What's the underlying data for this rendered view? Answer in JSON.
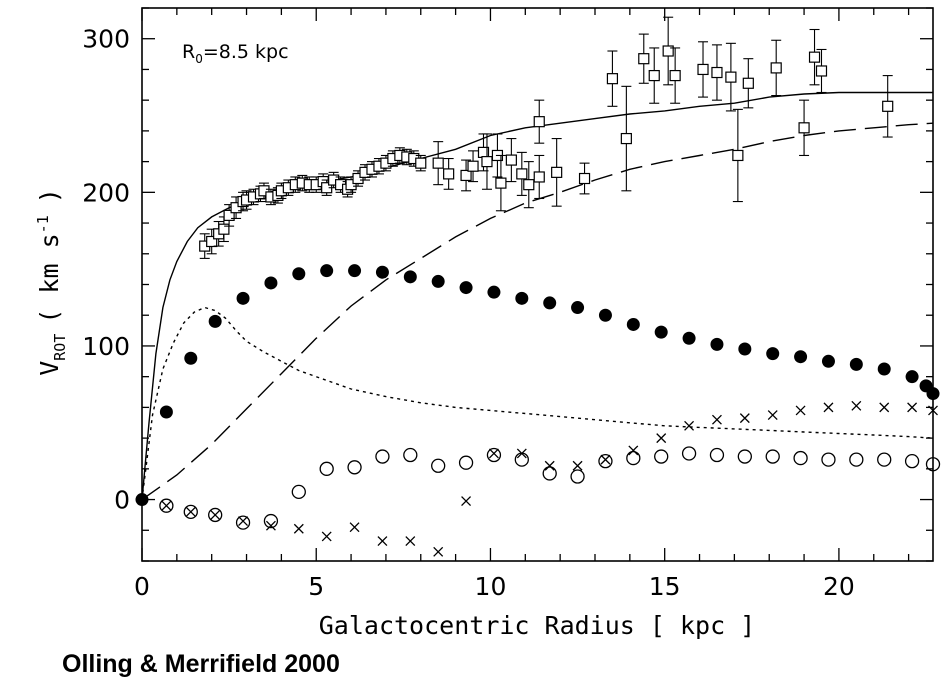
{
  "credit": "Olling & Merrifield  2000",
  "chart_data": {
    "type": "scatter",
    "xlabel": "Galactocentric Radius [ kpc ]",
    "ylabel": "V_ROT ( km s^-1 )",
    "ylabel_parts": {
      "v": "V",
      "sub": "ROT",
      "rest_a": "( km s",
      "sup": "-1",
      "rest_b": ")"
    },
    "annotation": {
      "base": "R",
      "sub": "0",
      "rest": "=8.5 kpc"
    },
    "xlim": [
      0,
      22.7
    ],
    "ylim": [
      -40,
      320
    ],
    "x_ticks": [
      0,
      5,
      10,
      15,
      20
    ],
    "y_ticks": [
      0,
      100,
      200,
      300
    ],
    "series": [
      {
        "marker": "open-square-errorbar",
        "points": [
          [
            1.8,
            165,
            8
          ],
          [
            2.0,
            168,
            8
          ],
          [
            2.2,
            173,
            8
          ],
          [
            2.35,
            176,
            8
          ],
          [
            2.5,
            185,
            7
          ],
          [
            2.7,
            190,
            7
          ],
          [
            2.9,
            194,
            6
          ],
          [
            3.0,
            195,
            6
          ],
          [
            3.2,
            197,
            5
          ],
          [
            3.4,
            199,
            5
          ],
          [
            3.5,
            201,
            5
          ],
          [
            3.7,
            197,
            5
          ],
          [
            3.9,
            198,
            5
          ],
          [
            4.0,
            201,
            5
          ],
          [
            4.2,
            203,
            5
          ],
          [
            4.4,
            205,
            5
          ],
          [
            4.6,
            206,
            5
          ],
          [
            4.8,
            205,
            5
          ],
          [
            5.0,
            205,
            5
          ],
          [
            5.2,
            207,
            5
          ],
          [
            5.3,
            203,
            5
          ],
          [
            5.5,
            208,
            5
          ],
          [
            5.7,
            205,
            5
          ],
          [
            5.9,
            202,
            5
          ],
          [
            6.0,
            205,
            5
          ],
          [
            6.2,
            209,
            5
          ],
          [
            6.4,
            213,
            5
          ],
          [
            6.6,
            215,
            5
          ],
          [
            6.8,
            217,
            5
          ],
          [
            7.0,
            219,
            5
          ],
          [
            7.2,
            222,
            5
          ],
          [
            7.4,
            224,
            5
          ],
          [
            7.6,
            223,
            5
          ],
          [
            7.8,
            222,
            5
          ],
          [
            8.0,
            219,
            5
          ],
          [
            8.5,
            219,
            14
          ],
          [
            8.8,
            212,
            10
          ],
          [
            9.3,
            211,
            10
          ],
          [
            9.5,
            217,
            10
          ],
          [
            9.8,
            226,
            12
          ],
          [
            9.9,
            220,
            18
          ],
          [
            10.2,
            224,
            14
          ],
          [
            10.3,
            206,
            18
          ],
          [
            10.6,
            221,
            14
          ],
          [
            10.9,
            212,
            14
          ],
          [
            11.1,
            205,
            15
          ],
          [
            11.4,
            246,
            14
          ],
          [
            11.4,
            210,
            14
          ],
          [
            11.9,
            213,
            22
          ],
          [
            12.7,
            209,
            10
          ],
          [
            13.5,
            274,
            18
          ],
          [
            13.9,
            235,
            34
          ],
          [
            14.4,
            287,
            16
          ],
          [
            14.7,
            276,
            18
          ],
          [
            15.1,
            292,
            22
          ],
          [
            15.3,
            276,
            18
          ],
          [
            16.1,
            280,
            18
          ],
          [
            16.5,
            278,
            18
          ],
          [
            16.9,
            275,
            22
          ],
          [
            17.1,
            224,
            30
          ],
          [
            17.4,
            271,
            16
          ],
          [
            18.2,
            281,
            18
          ],
          [
            19.0,
            242,
            18
          ],
          [
            19.3,
            288,
            18
          ],
          [
            19.5,
            279,
            14
          ],
          [
            21.4,
            256,
            20
          ]
        ]
      },
      {
        "marker": "filled-circle",
        "points": [
          [
            0,
            0
          ],
          [
            0.7,
            57
          ],
          [
            1.4,
            92
          ],
          [
            2.1,
            116
          ],
          [
            2.9,
            131
          ],
          [
            3.7,
            141
          ],
          [
            4.5,
            147
          ],
          [
            5.3,
            149
          ],
          [
            6.1,
            149
          ],
          [
            6.9,
            148
          ],
          [
            7.7,
            145
          ],
          [
            8.5,
            142
          ],
          [
            9.3,
            138
          ],
          [
            10.1,
            135
          ],
          [
            10.9,
            131
          ],
          [
            11.7,
            128
          ],
          [
            12.5,
            125
          ],
          [
            13.3,
            120
          ],
          [
            14.1,
            114
          ],
          [
            14.9,
            109
          ],
          [
            15.7,
            105
          ],
          [
            16.5,
            101
          ],
          [
            17.3,
            98
          ],
          [
            18.1,
            95
          ],
          [
            18.9,
            93
          ],
          [
            19.7,
            90
          ],
          [
            20.5,
            88
          ],
          [
            21.3,
            85
          ],
          [
            22.1,
            80
          ],
          [
            22.5,
            74
          ],
          [
            22.7,
            69
          ]
        ]
      },
      {
        "marker": "open-circle",
        "points": [
          [
            0.7,
            -4
          ],
          [
            1.4,
            -8
          ],
          [
            2.1,
            -10
          ],
          [
            2.9,
            -15
          ],
          [
            3.7,
            -14
          ],
          [
            4.5,
            5
          ],
          [
            5.3,
            20
          ],
          [
            6.1,
            21
          ],
          [
            6.9,
            28
          ],
          [
            7.7,
            29
          ],
          [
            8.5,
            22
          ],
          [
            9.3,
            24
          ],
          [
            10.1,
            29
          ],
          [
            10.9,
            26
          ],
          [
            11.7,
            17
          ],
          [
            12.5,
            15
          ],
          [
            13.3,
            25
          ],
          [
            14.1,
            27
          ],
          [
            14.9,
            28
          ],
          [
            15.7,
            30
          ],
          [
            16.5,
            29
          ],
          [
            17.3,
            28
          ],
          [
            18.1,
            28
          ],
          [
            18.9,
            27
          ],
          [
            19.7,
            26
          ],
          [
            20.5,
            26
          ],
          [
            21.3,
            26
          ],
          [
            22.1,
            25
          ],
          [
            22.7,
            23
          ]
        ]
      },
      {
        "marker": "cross",
        "points": [
          [
            0.7,
            -4
          ],
          [
            1.4,
            -8
          ],
          [
            2.1,
            -10
          ],
          [
            2.9,
            -14
          ],
          [
            3.7,
            -17
          ],
          [
            4.5,
            -19
          ],
          [
            5.3,
            -24
          ],
          [
            6.1,
            -18
          ],
          [
            6.9,
            -27
          ],
          [
            7.7,
            -27
          ],
          [
            8.5,
            -34
          ],
          [
            9.3,
            -1
          ],
          [
            10.1,
            30
          ],
          [
            10.9,
            30
          ],
          [
            11.7,
            22
          ],
          [
            12.5,
            22
          ],
          [
            13.3,
            26
          ],
          [
            14.1,
            32
          ],
          [
            14.9,
            40
          ],
          [
            15.7,
            48
          ],
          [
            16.5,
            52
          ],
          [
            17.3,
            53
          ],
          [
            18.1,
            55
          ],
          [
            18.9,
            58
          ],
          [
            19.7,
            60
          ],
          [
            20.5,
            61
          ],
          [
            21.3,
            60
          ],
          [
            22.1,
            60
          ],
          [
            22.7,
            58
          ]
        ]
      },
      {
        "style": "solid",
        "points": [
          [
            0,
            0
          ],
          [
            0.2,
            50
          ],
          [
            0.4,
            95
          ],
          [
            0.6,
            125
          ],
          [
            0.8,
            143
          ],
          [
            1.0,
            155
          ],
          [
            1.3,
            168
          ],
          [
            1.6,
            177
          ],
          [
            2.0,
            184
          ],
          [
            2.5,
            190
          ],
          [
            3.0,
            195
          ],
          [
            3.5,
            199
          ],
          [
            4.0,
            202
          ],
          [
            5.0,
            206
          ],
          [
            6.0,
            210
          ],
          [
            7.0,
            216
          ],
          [
            8.0,
            222
          ],
          [
            9.0,
            228
          ],
          [
            10.0,
            237
          ],
          [
            11.0,
            242
          ],
          [
            12.0,
            245
          ],
          [
            13.0,
            248
          ],
          [
            14.0,
            251
          ],
          [
            15.0,
            253
          ],
          [
            16.0,
            256
          ],
          [
            17.0,
            258
          ],
          [
            18.0,
            262
          ],
          [
            19.0,
            264
          ],
          [
            20.0,
            265
          ],
          [
            21.0,
            265
          ],
          [
            22.0,
            265
          ],
          [
            22.7,
            265
          ]
        ]
      },
      {
        "style": "dashed",
        "points": [
          [
            0,
            0
          ],
          [
            1.0,
            16
          ],
          [
            2.0,
            36
          ],
          [
            3.0,
            59
          ],
          [
            4.0,
            82
          ],
          [
            5.0,
            105
          ],
          [
            6.0,
            126
          ],
          [
            7.0,
            143
          ],
          [
            8.0,
            157
          ],
          [
            9.0,
            171
          ],
          [
            10.0,
            183
          ],
          [
            11.0,
            193
          ],
          [
            12.0,
            200
          ],
          [
            13.0,
            208
          ],
          [
            14.0,
            215
          ],
          [
            15.0,
            220
          ],
          [
            16.0,
            224
          ],
          [
            17.0,
            228
          ],
          [
            18.0,
            233
          ],
          [
            19.0,
            237
          ],
          [
            20.0,
            240
          ],
          [
            21.0,
            242
          ],
          [
            22.0,
            244
          ],
          [
            22.7,
            245
          ]
        ]
      },
      {
        "style": "dotted",
        "points": [
          [
            0,
            0
          ],
          [
            0.3,
            55
          ],
          [
            0.6,
            85
          ],
          [
            0.9,
            102
          ],
          [
            1.2,
            115
          ],
          [
            1.5,
            122
          ],
          [
            1.8,
            125
          ],
          [
            2.1,
            123
          ],
          [
            2.4,
            118
          ],
          [
            2.7,
            110
          ],
          [
            3.0,
            103
          ],
          [
            3.5,
            96
          ],
          [
            4.0,
            90
          ],
          [
            4.5,
            84
          ],
          [
            5.0,
            80
          ],
          [
            6.0,
            72
          ],
          [
            7.0,
            67
          ],
          [
            8.0,
            63
          ],
          [
            9.0,
            60
          ],
          [
            10.0,
            58
          ],
          [
            11.0,
            56
          ],
          [
            12.0,
            54
          ],
          [
            13.0,
            52
          ],
          [
            14.0,
            50
          ],
          [
            15.0,
            48
          ],
          [
            16.0,
            47
          ],
          [
            17.0,
            46
          ],
          [
            18.0,
            45
          ],
          [
            19.0,
            44
          ],
          [
            20.0,
            43
          ],
          [
            21.0,
            42
          ],
          [
            22.0,
            41
          ],
          [
            22.7,
            40
          ]
        ]
      }
    ]
  }
}
